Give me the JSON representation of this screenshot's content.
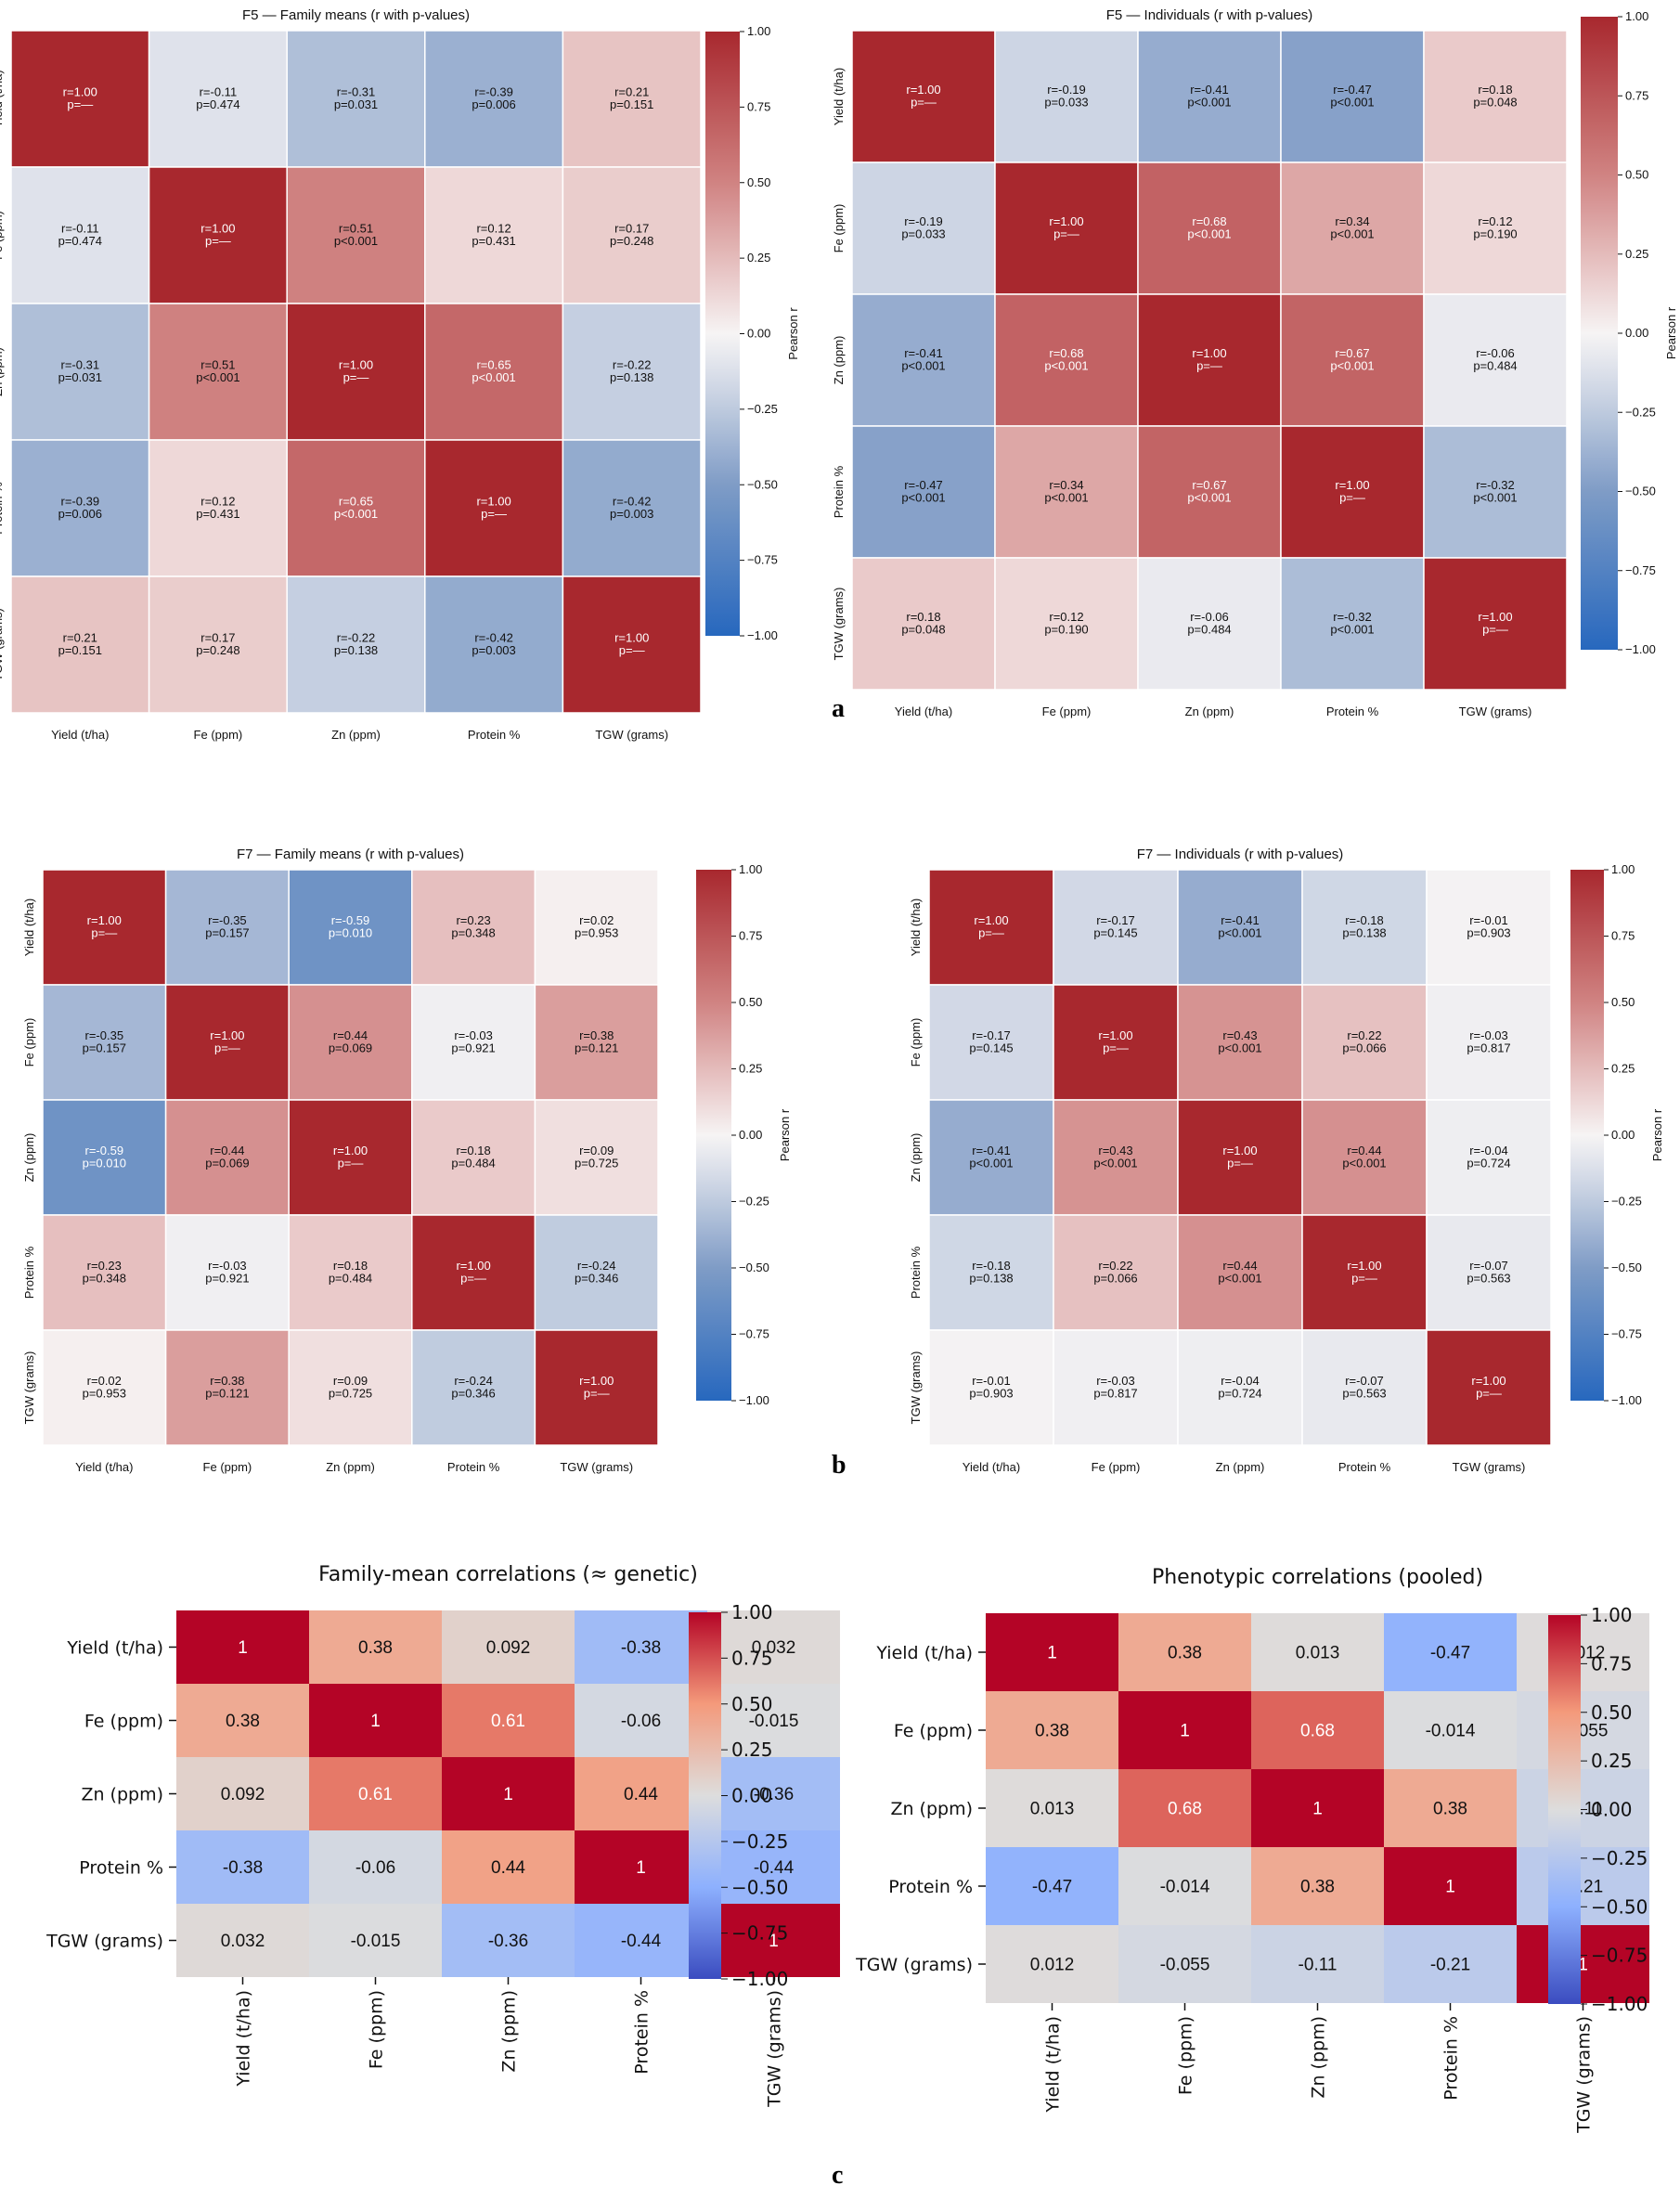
{
  "labels": [
    "a",
    "b",
    "c"
  ],
  "chart_data": [
    {
      "type": "heatmap",
      "title": "F5 — Family means (r with p-values)",
      "variables": [
        "Yield (t/ha)",
        "Fe (ppm)",
        "Zn (ppm)",
        "Protein %",
        "TGW (grams)"
      ],
      "r": [
        [
          1.0,
          -0.11,
          -0.31,
          -0.39,
          0.21
        ],
        [
          -0.11,
          1.0,
          0.51,
          0.12,
          0.17
        ],
        [
          -0.31,
          0.51,
          1.0,
          0.65,
          -0.22
        ],
        [
          -0.39,
          0.12,
          0.65,
          1.0,
          -0.42
        ],
        [
          0.21,
          0.17,
          -0.22,
          -0.42,
          1.0
        ]
      ],
      "cells": [
        [
          "r=1.00\np=—",
          "r=-0.11\np=0.474",
          "r=-0.31\np=0.031",
          "r=-0.39\np=0.006",
          "r=0.21\np=0.151"
        ],
        [
          "r=-0.11\np=0.474",
          "r=1.00\np=—",
          "r=0.51\np<0.001",
          "r=0.12\np=0.431",
          "r=0.17\np=0.248"
        ],
        [
          "r=-0.31\np=0.031",
          "r=0.51\np<0.001",
          "r=1.00\np=—",
          "r=0.65\np<0.001",
          "r=-0.22\np=0.138"
        ],
        [
          "r=-0.39\np=0.006",
          "r=0.12\np=0.431",
          "r=0.65\np<0.001",
          "r=1.00\np=—",
          "r=-0.42\np=0.003"
        ],
        [
          "r=0.21\np=0.151",
          "r=0.17\np=0.248",
          "r=-0.22\np=0.138",
          "r=-0.42\np=0.003",
          "r=1.00\np=—"
        ]
      ],
      "colorbar": {
        "label": "Pearson r",
        "range": [
          -1,
          1
        ],
        "ticks": [
          "1.00",
          "0.75",
          "0.50",
          "0.25",
          "0.00",
          "−0.25",
          "−0.50",
          "−0.75",
          "−1.00"
        ]
      },
      "colormap": "coolwarm-light"
    },
    {
      "type": "heatmap",
      "title": "F5 — Individuals (r with p-values)",
      "variables": [
        "Yield (t/ha)",
        "Fe (ppm)",
        "Zn (ppm)",
        "Protein %",
        "TGW (grams)"
      ],
      "r": [
        [
          1.0,
          -0.19,
          -0.41,
          -0.47,
          0.18
        ],
        [
          -0.19,
          1.0,
          0.68,
          0.34,
          0.12
        ],
        [
          -0.41,
          0.68,
          1.0,
          0.67,
          -0.06
        ],
        [
          -0.47,
          0.34,
          0.67,
          1.0,
          -0.32
        ],
        [
          0.18,
          0.12,
          -0.06,
          -0.32,
          1.0
        ]
      ],
      "cells": [
        [
          "r=1.00\np=—",
          "r=-0.19\np=0.033",
          "r=-0.41\np<0.001",
          "r=-0.47\np<0.001",
          "r=0.18\np=0.048"
        ],
        [
          "r=-0.19\np=0.033",
          "r=1.00\np=—",
          "r=0.68\np<0.001",
          "r=0.34\np<0.001",
          "r=0.12\np=0.190"
        ],
        [
          "r=-0.41\np<0.001",
          "r=0.68\np<0.001",
          "r=1.00\np=—",
          "r=0.67\np<0.001",
          "r=-0.06\np=0.484"
        ],
        [
          "r=-0.47\np<0.001",
          "r=0.34\np<0.001",
          "r=0.67\np<0.001",
          "r=1.00\np=—",
          "r=-0.32\np<0.001"
        ],
        [
          "r=0.18\np=0.048",
          "r=0.12\np=0.190",
          "r=-0.06\np=0.484",
          "r=-0.32\np<0.001",
          "r=1.00\np=—"
        ]
      ],
      "colorbar": {
        "label": "Pearson r",
        "range": [
          -1,
          1
        ],
        "ticks": [
          "1.00",
          "0.75",
          "0.50",
          "0.25",
          "0.00",
          "−0.25",
          "−0.50",
          "−0.75",
          "−1.00"
        ]
      },
      "colormap": "coolwarm-light"
    },
    {
      "type": "heatmap",
      "title": "F7 — Family means (r with p-values)",
      "variables": [
        "Yield (t/ha)",
        "Fe (ppm)",
        "Zn (ppm)",
        "Protein %",
        "TGW (grams)"
      ],
      "r": [
        [
          1.0,
          -0.35,
          -0.59,
          0.23,
          0.02
        ],
        [
          -0.35,
          1.0,
          0.44,
          -0.03,
          0.38
        ],
        [
          -0.59,
          0.44,
          1.0,
          0.18,
          0.09
        ],
        [
          0.23,
          -0.03,
          0.18,
          1.0,
          -0.24
        ],
        [
          0.02,
          0.38,
          0.09,
          -0.24,
          1.0
        ]
      ],
      "cells": [
        [
          "r=1.00\np=—",
          "r=-0.35\np=0.157",
          "r=-0.59\np=0.010",
          "r=0.23\np=0.348",
          "r=0.02\np=0.953"
        ],
        [
          "r=-0.35\np=0.157",
          "r=1.00\np=—",
          "r=0.44\np=0.069",
          "r=-0.03\np=0.921",
          "r=0.38\np=0.121"
        ],
        [
          "r=-0.59\np=0.010",
          "r=0.44\np=0.069",
          "r=1.00\np=—",
          "r=0.18\np=0.484",
          "r=0.09\np=0.725"
        ],
        [
          "r=0.23\np=0.348",
          "r=-0.03\np=0.921",
          "r=0.18\np=0.484",
          "r=1.00\np=—",
          "r=-0.24\np=0.346"
        ],
        [
          "r=0.02\np=0.953",
          "r=0.38\np=0.121",
          "r=0.09\np=0.725",
          "r=-0.24\np=0.346",
          "r=1.00\np=—"
        ]
      ],
      "colorbar": {
        "label": "Pearson r",
        "range": [
          -1,
          1
        ],
        "ticks": [
          "1.00",
          "0.75",
          "0.50",
          "0.25",
          "0.00",
          "−0.25",
          "−0.50",
          "−0.75",
          "−1.00"
        ]
      },
      "colormap": "coolwarm-light"
    },
    {
      "type": "heatmap",
      "title": "F7 — Individuals (r with p-values)",
      "variables": [
        "Yield (t/ha)",
        "Fe (ppm)",
        "Zn (ppm)",
        "Protein %",
        "TGW (grams)"
      ],
      "r": [
        [
          1.0,
          -0.17,
          -0.41,
          -0.18,
          -0.01
        ],
        [
          -0.17,
          1.0,
          0.43,
          0.22,
          -0.03
        ],
        [
          -0.41,
          0.43,
          1.0,
          0.44,
          -0.04
        ],
        [
          -0.18,
          0.22,
          0.44,
          1.0,
          -0.07
        ],
        [
          -0.01,
          -0.03,
          -0.04,
          -0.07,
          1.0
        ]
      ],
      "cells": [
        [
          "r=1.00\np=—",
          "r=-0.17\np=0.145",
          "r=-0.41\np<0.001",
          "r=-0.18\np=0.138",
          "r=-0.01\np=0.903"
        ],
        [
          "r=-0.17\np=0.145",
          "r=1.00\np=—",
          "r=0.43\np<0.001",
          "r=0.22\np=0.066",
          "r=-0.03\np=0.817"
        ],
        [
          "r=-0.41\np<0.001",
          "r=0.43\np<0.001",
          "r=1.00\np=—",
          "r=0.44\np<0.001",
          "r=-0.04\np=0.724"
        ],
        [
          "r=-0.18\np=0.138",
          "r=0.22\np=0.066",
          "r=0.44\np<0.001",
          "r=1.00\np=—",
          "r=-0.07\np=0.563"
        ],
        [
          "r=-0.01\np=0.903",
          "r=-0.03\np=0.817",
          "r=-0.04\np=0.724",
          "r=-0.07\np=0.563",
          "r=1.00\np=—"
        ]
      ],
      "colorbar": {
        "label": "Pearson r",
        "range": [
          -1,
          1
        ],
        "ticks": [
          "1.00",
          "0.75",
          "0.50",
          "0.25",
          "0.00",
          "−0.25",
          "−0.50",
          "−0.75",
          "−1.00"
        ]
      },
      "colormap": "coolwarm-light"
    },
    {
      "type": "heatmap",
      "title": "Family-mean correlations (≈ genetic)",
      "variables": [
        "Yield (t/ha)",
        "Fe (ppm)",
        "Zn (ppm)",
        "Protein %",
        "TGW (grams)"
      ],
      "r": [
        [
          1,
          0.38,
          0.092,
          -0.38,
          0.032
        ],
        [
          0.38,
          1,
          0.61,
          -0.06,
          -0.015
        ],
        [
          0.092,
          0.61,
          1,
          0.44,
          -0.36
        ],
        [
          -0.38,
          -0.06,
          0.44,
          1,
          -0.44
        ],
        [
          0.032,
          -0.015,
          -0.36,
          -0.44,
          1
        ]
      ],
      "cells": [
        [
          "1",
          "0.38",
          "0.092",
          "-0.38",
          "0.032"
        ],
        [
          "0.38",
          "1",
          "0.61",
          "-0.06",
          "-0.015"
        ],
        [
          "0.092",
          "0.61",
          "1",
          "0.44",
          "-0.36"
        ],
        [
          "-0.38",
          "-0.06",
          "0.44",
          "1",
          "-0.44"
        ],
        [
          "0.032",
          "-0.015",
          "-0.36",
          "-0.44",
          "1"
        ]
      ],
      "colorbar": {
        "label": "",
        "range": [
          -1,
          1
        ],
        "ticks": [
          "1.00",
          "0.75",
          "0.50",
          "0.25",
          "0.00",
          "−0.25",
          "−0.50",
          "−0.75",
          "−1.00"
        ]
      },
      "colormap": "coolwarm"
    },
    {
      "type": "heatmap",
      "title": "Phenotypic correlations (pooled)",
      "variables": [
        "Yield (t/ha)",
        "Fe (ppm)",
        "Zn (ppm)",
        "Protein %",
        "TGW (grams)"
      ],
      "r": [
        [
          1,
          0.38,
          0.013,
          -0.47,
          0.012
        ],
        [
          0.38,
          1,
          0.68,
          -0.014,
          -0.055
        ],
        [
          0.013,
          0.68,
          1,
          0.38,
          -0.11
        ],
        [
          -0.47,
          -0.014,
          0.38,
          1,
          -0.21
        ],
        [
          0.012,
          -0.055,
          -0.11,
          -0.21,
          1
        ]
      ],
      "cells": [
        [
          "1",
          "0.38",
          "0.013",
          "-0.47",
          "0.012"
        ],
        [
          "0.38",
          "1",
          "0.68",
          "-0.014",
          "-0.055"
        ],
        [
          "0.013",
          "0.68",
          "1",
          "0.38",
          "-0.11"
        ],
        [
          "-0.47",
          "-0.014",
          "0.38",
          "1",
          "-0.21"
        ],
        [
          "0.012",
          "-0.055",
          "-0.11",
          "-0.21",
          "1"
        ]
      ],
      "colorbar": {
        "label": "",
        "range": [
          -1,
          1
        ],
        "ticks": [
          "1.00",
          "0.75",
          "0.50",
          "0.25",
          "0.00",
          "−0.25",
          "−0.50",
          "−0.75",
          "−1.00"
        ]
      },
      "colormap": "coolwarm"
    }
  ]
}
